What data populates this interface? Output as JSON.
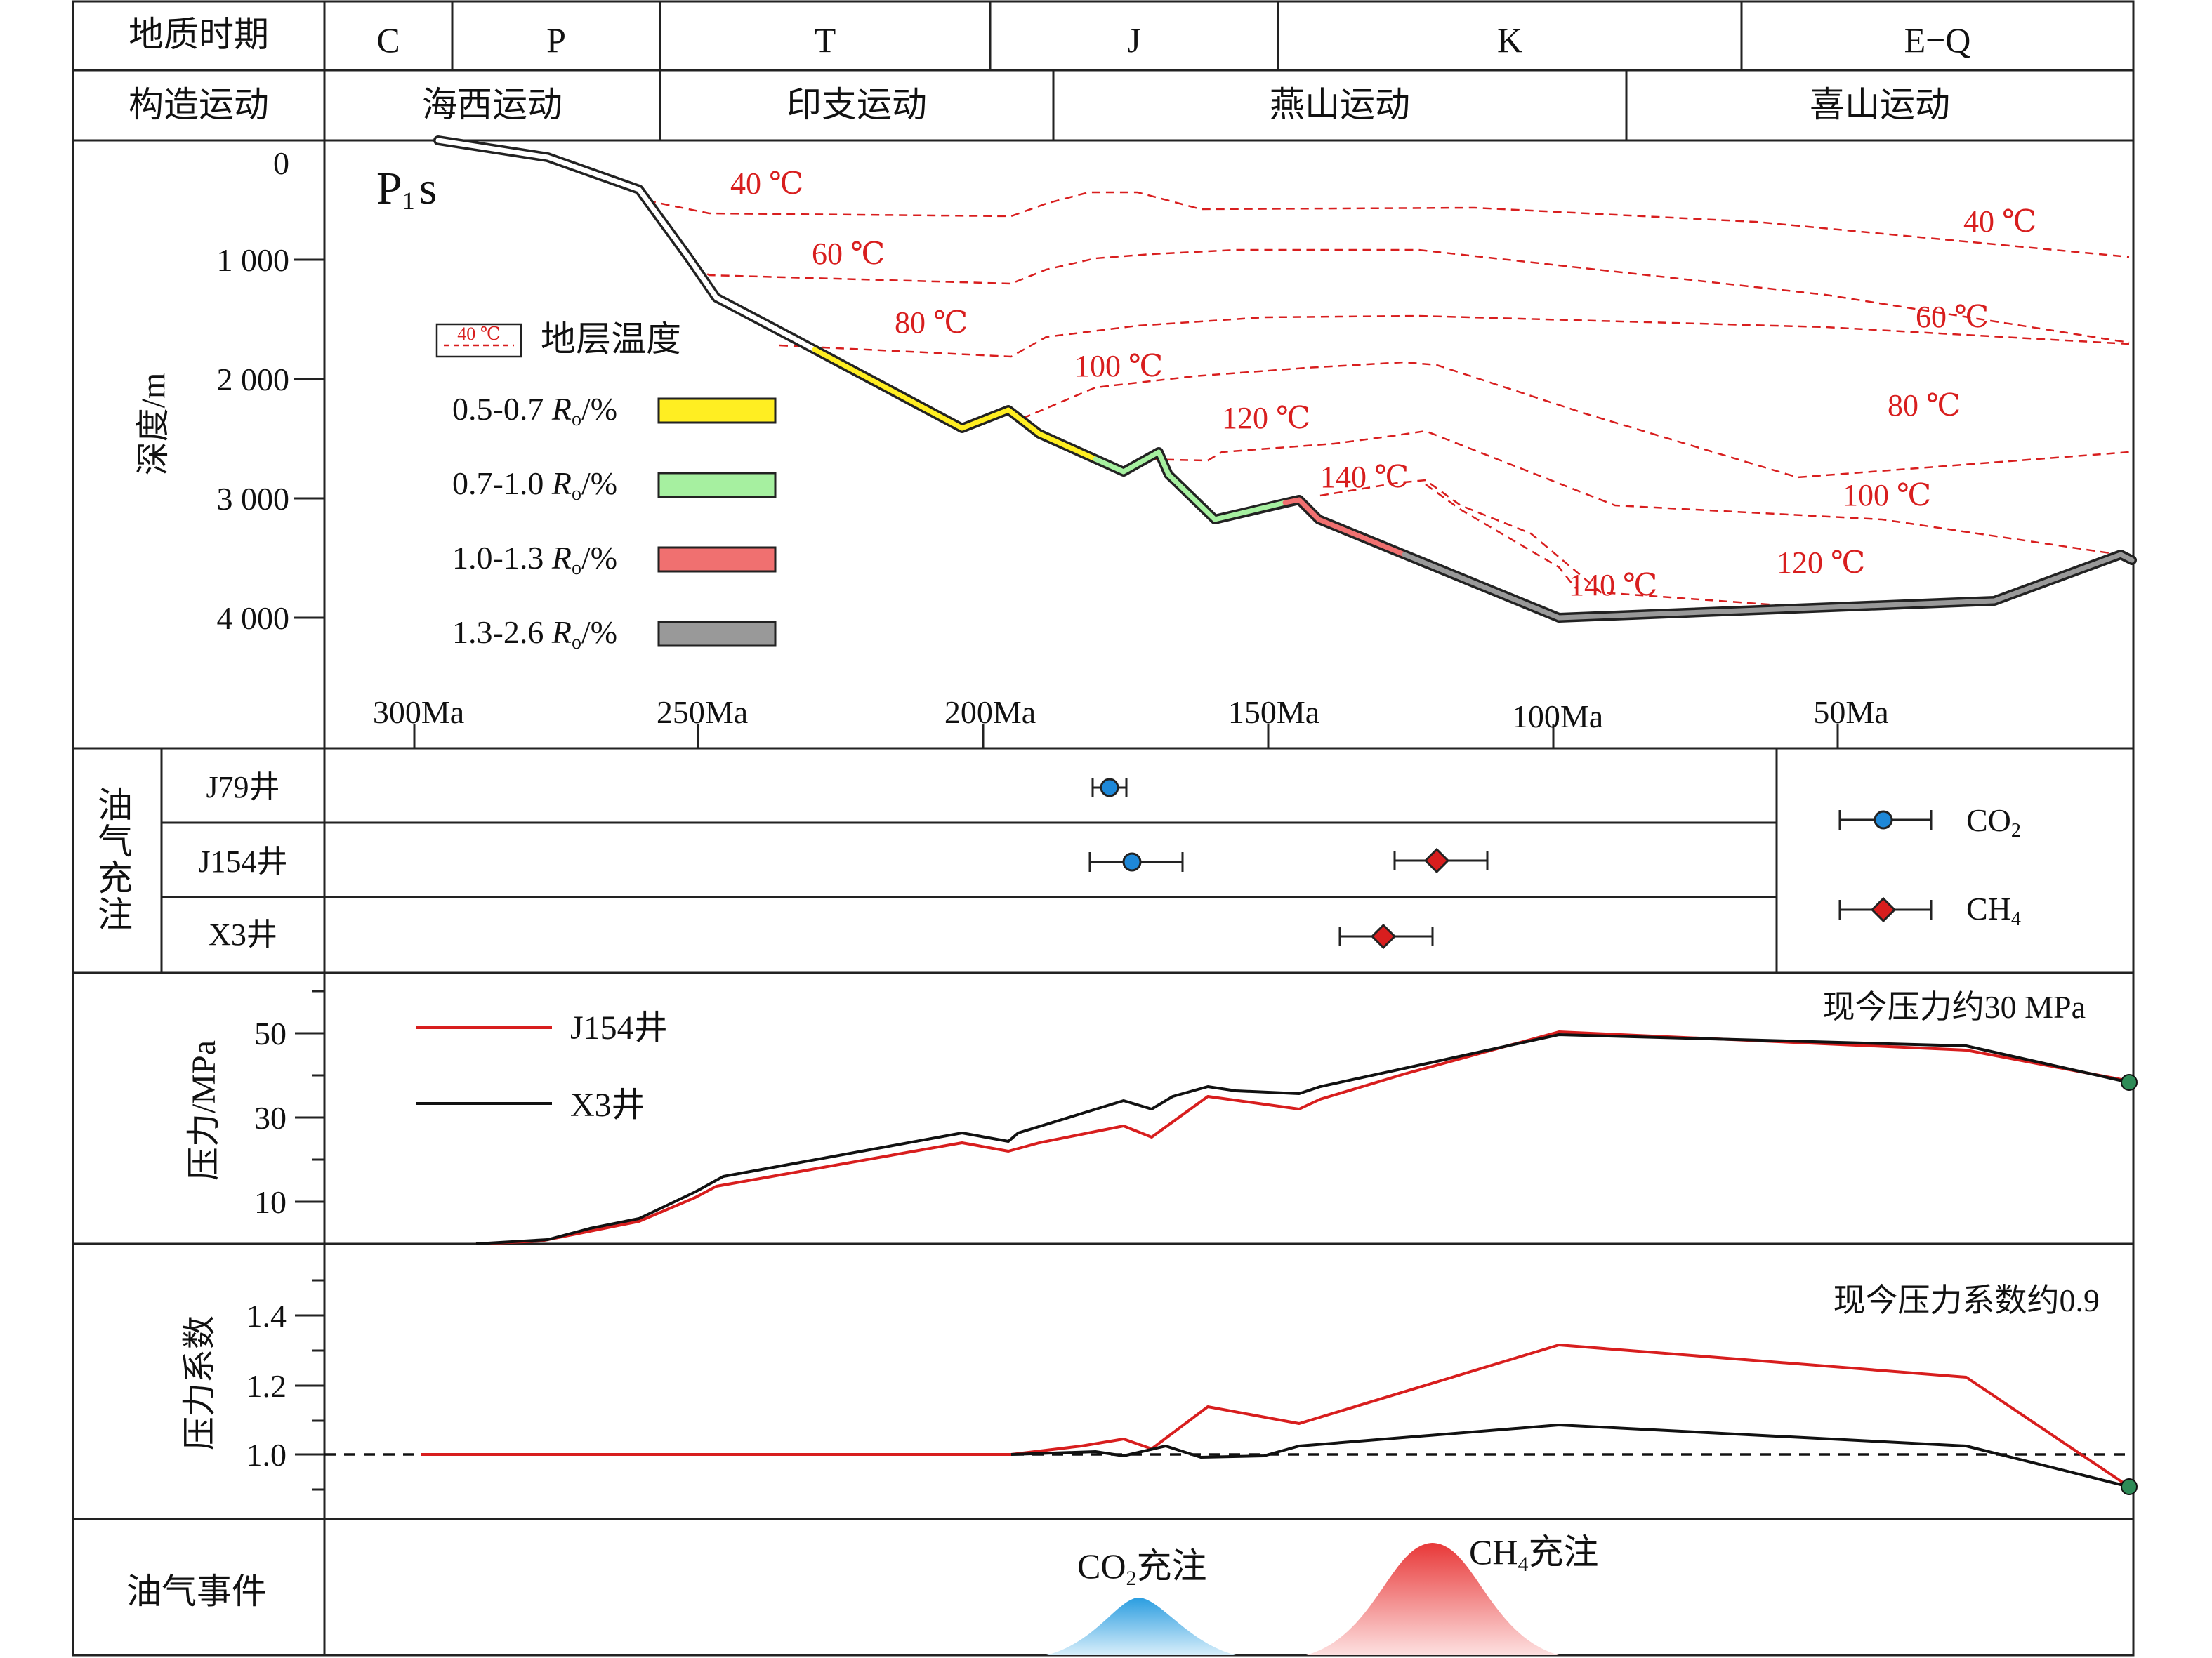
{
  "header": {
    "period_label": "地质时期",
    "periods": [
      "C",
      "P",
      "T",
      "J",
      "K",
      "E−Q"
    ],
    "tectonic_label": "构造运动",
    "movements": [
      "海西运动",
      "印支运动",
      "燕山运动",
      "喜山运动"
    ]
  },
  "burial": {
    "unit_main": "P",
    "unit_sub": "1",
    "unit_tail": "s",
    "ylabel": "深度/m",
    "y_ticks": [
      "0",
      "1 000",
      "2 000",
      "3 000",
      "4 000"
    ],
    "x_ticks": [
      "300Ma",
      "250Ma",
      "200Ma",
      "150Ma",
      "100Ma",
      "50Ma"
    ],
    "legend_temp_icon": "40 ℃",
    "legend_temp_label": "地层温度",
    "legend_ro": [
      {
        "range": "0.5-0.7",
        "sym": "R",
        "sub": "o",
        "unit": "/%",
        "color": "#ffee22"
      },
      {
        "range": "0.7-1.0",
        "sym": "R",
        "sub": "o",
        "unit": "/%",
        "color": "#a6f0a0"
      },
      {
        "range": "1.0-1.3",
        "sym": "R",
        "sub": "o",
        "unit": "/%",
        "color": "#f07070"
      },
      {
        "range": "1.3-2.6",
        "sym": "R",
        "sub": "o",
        "unit": "/%",
        "color": "#999999"
      }
    ],
    "isotherm_labels": [
      "40 ℃",
      "60 ℃",
      "80 ℃",
      "100 ℃",
      "120 ℃",
      "140 ℃",
      "40 ℃",
      "60 ℃",
      "80 ℃",
      "100 ℃",
      "120 ℃",
      "140 ℃"
    ]
  },
  "charging": {
    "label": "油气充注",
    "wells": [
      "J79井",
      "J154井",
      "X3井"
    ],
    "legend": [
      {
        "gas": "CO",
        "sub": "2",
        "color": "#1e88d8"
      },
      {
        "gas": "CH",
        "sub": "4",
        "color": "#d81e1e"
      }
    ]
  },
  "pressure": {
    "ylabel": "压力/MPa",
    "y_ticks": [
      "10",
      "30",
      "50"
    ],
    "legend": [
      "J154井",
      "X3井"
    ],
    "note": "现今压力约30 MPa"
  },
  "coefficient": {
    "ylabel": "压力系数",
    "y_ticks": [
      "1.0",
      "1.2",
      "1.4"
    ],
    "note": "现今压力系数约0.9"
  },
  "events": {
    "label": "油气事件",
    "co2_main": "CO",
    "co2_sub": "2",
    "co2_tail": "充注",
    "ch4_main": "CH",
    "ch4_sub": "4",
    "ch4_tail": "充注"
  },
  "colors": {
    "isotherm": "#d81e1e",
    "j154": "#d81e1e",
    "x3": "#111111",
    "co2_peak": "#4ab4ec",
    "ch4_peak": "#f05a5a",
    "end_marker": "#2e8b57"
  }
}
